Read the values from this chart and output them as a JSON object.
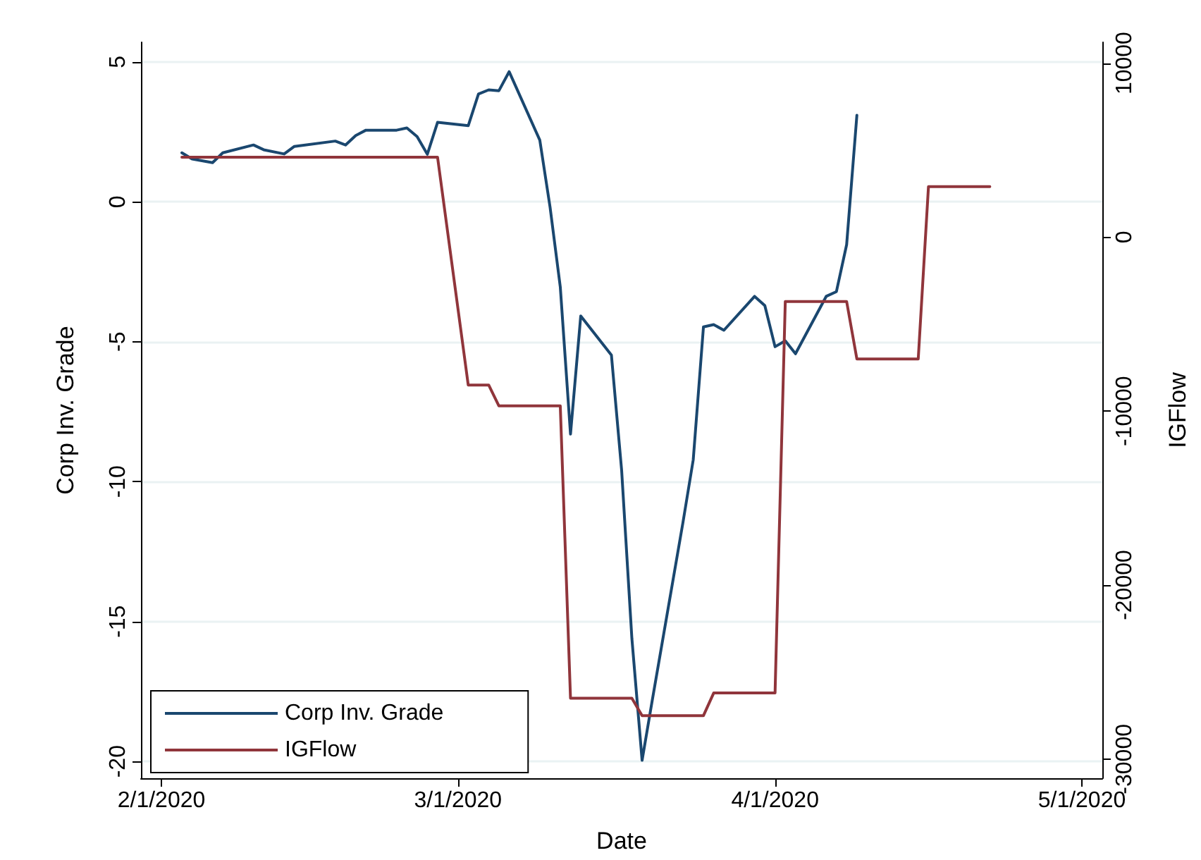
{
  "chart_data": {
    "type": "line",
    "xlabel": "Date",
    "ylabel": "Corp Inv. Grade",
    "y2label": "IGFlow",
    "xlim": [
      "2020-01-30",
      "2020-05-03"
    ],
    "xticks": [
      {
        "value": "2020-02-01",
        "label": "2/1/2020"
      },
      {
        "value": "2020-03-01",
        "label": "3/1/2020"
      },
      {
        "value": "2020-04-01",
        "label": "4/1/2020"
      },
      {
        "value": "2020-05-01",
        "label": "5/1/2020"
      }
    ],
    "ylim": [
      -20.6,
      5.7
    ],
    "yticks": [
      -20,
      -15,
      -10,
      -5,
      0,
      5
    ],
    "y2lim": [
      -31100,
      11200
    ],
    "y2ticks": [
      -30000,
      -20000,
      -10000,
      0,
      10000
    ],
    "grid": "y",
    "legend": "bottom left",
    "marker": "none",
    "line_style": "solid",
    "series": [
      {
        "name": "Corp Inv. Grade",
        "color": "#1a476f",
        "x": [
          "2020-02-03",
          "2020-02-04",
          "2020-02-06",
          "2020-02-07",
          "2020-02-10",
          "2020-02-11",
          "2020-02-13",
          "2020-02-14",
          "2020-02-18",
          "2020-02-19",
          "2020-02-20",
          "2020-02-21",
          "2020-02-24",
          "2020-02-25",
          "2020-02-26",
          "2020-02-27",
          "2020-02-28",
          "2020-03-02",
          "2020-03-03",
          "2020-03-04",
          "2020-03-05",
          "2020-03-06",
          "2020-03-09",
          "2020-03-10",
          "2020-03-11",
          "2020-03-12",
          "2020-03-13",
          "2020-03-16",
          "2020-03-17",
          "2020-03-18",
          "2020-03-19",
          "2020-03-20",
          "2020-03-23",
          "2020-03-24",
          "2020-03-25",
          "2020-03-26",
          "2020-03-27",
          "2020-03-30",
          "2020-03-31",
          "2020-04-01",
          "2020-04-02",
          "2020-04-03",
          "2020-04-06",
          "2020-04-07",
          "2020-04-08",
          "2020-04-09"
        ],
        "values": [
          1.75,
          1.53,
          1.4,
          1.75,
          2.03,
          1.86,
          1.71,
          1.98,
          2.17,
          2.03,
          2.37,
          2.56,
          2.56,
          2.64,
          2.33,
          1.7,
          2.84,
          2.72,
          3.85,
          4.0,
          3.97,
          4.65,
          2.2,
          -0.19,
          -3.04,
          -8.3,
          -4.08,
          -5.48,
          -9.6,
          -15.6,
          -19.96,
          -17.8,
          -11.45,
          -9.22,
          -4.47,
          -4.39,
          -4.59,
          -3.38,
          -3.71,
          -5.18,
          -4.97,
          -5.43,
          -3.38,
          -3.21,
          -1.53,
          3.09
        ]
      },
      {
        "name": "IGFlow",
        "color": "#90353b",
        "axis": "y2",
        "x": [
          "2020-02-03",
          "2020-02-28",
          "2020-03-02",
          "2020-03-04",
          "2020-03-05",
          "2020-03-11",
          "2020-03-12",
          "2020-03-18",
          "2020-03-19",
          "2020-03-25",
          "2020-03-26",
          "2020-04-01",
          "2020-04-02",
          "2020-04-08",
          "2020-04-09",
          "2020-04-15",
          "2020-04-16",
          "2020-04-22"
        ],
        "values": [
          4600,
          4600,
          -8500,
          -8500,
          -9700,
          -9700,
          -26500,
          -26500,
          -27500,
          -27500,
          -26200,
          -26200,
          -3700,
          -3700,
          -7000,
          -7000,
          2900,
          2900
        ]
      }
    ]
  }
}
